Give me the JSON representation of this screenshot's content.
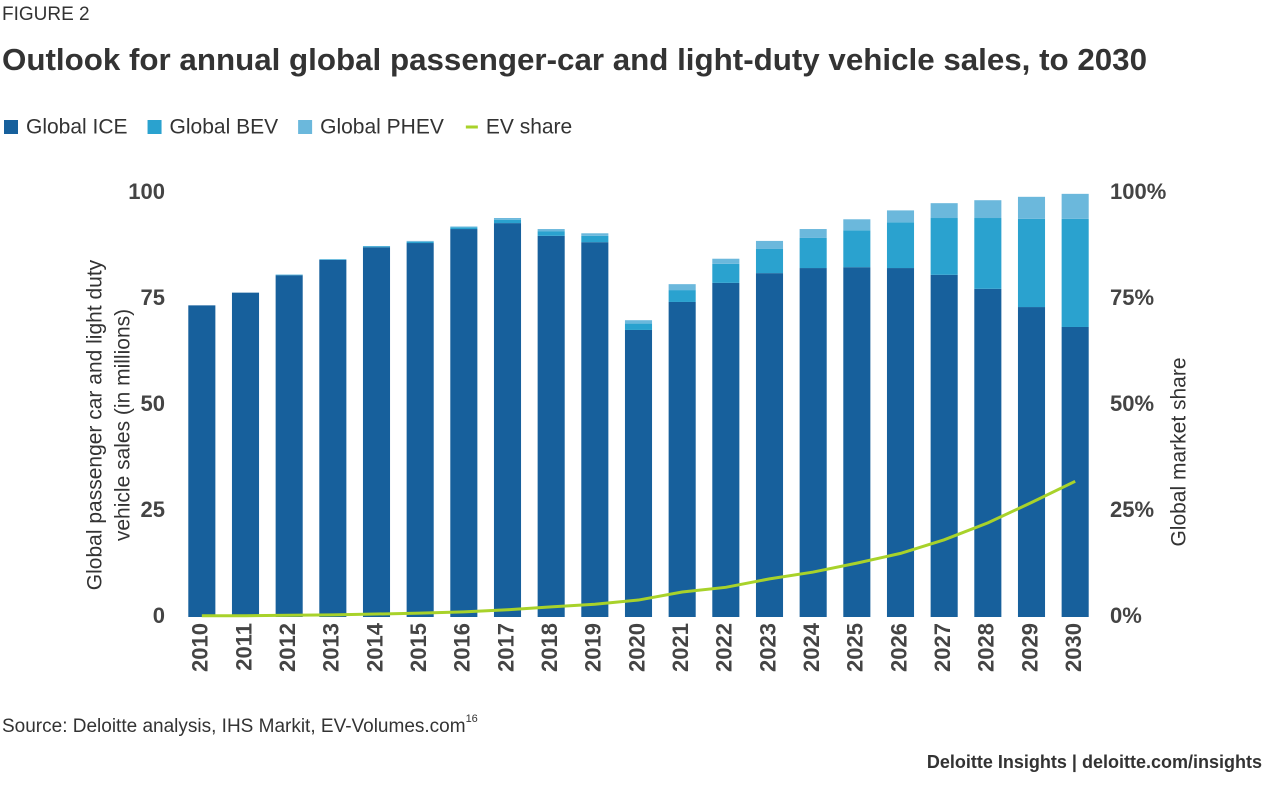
{
  "figure_label": "FIGURE 2",
  "chart_data": {
    "type": "bar",
    "stacked": true,
    "title": "Outlook for annual global passenger-car and light-duty vehicle sales, to 2030",
    "ylabel": [
      "Global passenger car and light duty",
      "vehicle sales (in millions)"
    ],
    "y2label": "Global market share",
    "categories": [
      "2010",
      "2011",
      "2012",
      "2013",
      "2014",
      "2015",
      "2016",
      "2017",
      "2018",
      "2019",
      "2020",
      "2021",
      "2022",
      "2023",
      "2024",
      "2025",
      "2026",
      "2027",
      "2028",
      "2029",
      "2030"
    ],
    "series": [
      {
        "name": "Global ICE",
        "color": "#17609c",
        "values": [
          73.5,
          76.5,
          80.6,
          84.2,
          87.2,
          88.2,
          91.5,
          92.9,
          89.9,
          88.4,
          67.7,
          74.3,
          78.8,
          81.1,
          82.3,
          82.5,
          82.3,
          80.7,
          77.4,
          73.1,
          68.4
        ]
      },
      {
        "name": "Global BEV",
        "color": "#2aa2cf",
        "values": [
          0,
          0,
          0.1,
          0.1,
          0.2,
          0.3,
          0.4,
          0.8,
          1.1,
          1.5,
          1.5,
          2.8,
          4.5,
          5.7,
          7.1,
          8.7,
          10.8,
          13.4,
          16.7,
          20.8,
          25.5
        ]
      },
      {
        "name": "Global PHEV",
        "color": "#6bb8dc",
        "values": [
          0,
          0,
          0.1,
          0.1,
          0.1,
          0.2,
          0.2,
          0.4,
          0.5,
          0.6,
          0.8,
          1.4,
          1.2,
          1.9,
          2.1,
          2.6,
          2.8,
          3.5,
          4.2,
          5.2,
          5.9
        ]
      },
      {
        "name": "EV share",
        "color": "#a8d22a",
        "type": "line",
        "axis": "y2",
        "values": [
          0.3,
          0.3,
          0.4,
          0.5,
          0.7,
          0.9,
          1.2,
          1.7,
          2.4,
          3,
          4,
          5.9,
          7,
          9,
          10.6,
          12.7,
          15,
          18.2,
          22.2,
          27,
          32
        ]
      }
    ],
    "ylim": [
      0,
      100
    ],
    "yticks": [
      0,
      25,
      50,
      75,
      100
    ],
    "y2lim": [
      0,
      100
    ],
    "y2ticks": [
      {
        "value": 0,
        "label": "0%"
      },
      {
        "value": 25,
        "label": "25%"
      },
      {
        "value": 50,
        "label": "50%"
      },
      {
        "value": 75,
        "label": "75%"
      },
      {
        "value": 100,
        "label": "100%"
      }
    ],
    "legend": "top-left"
  },
  "source": "Source: Deloitte analysis, IHS Markit, EV-Volumes.com",
  "source_note": "16",
  "footer": "Deloitte Insights | deloitte.com/insights"
}
